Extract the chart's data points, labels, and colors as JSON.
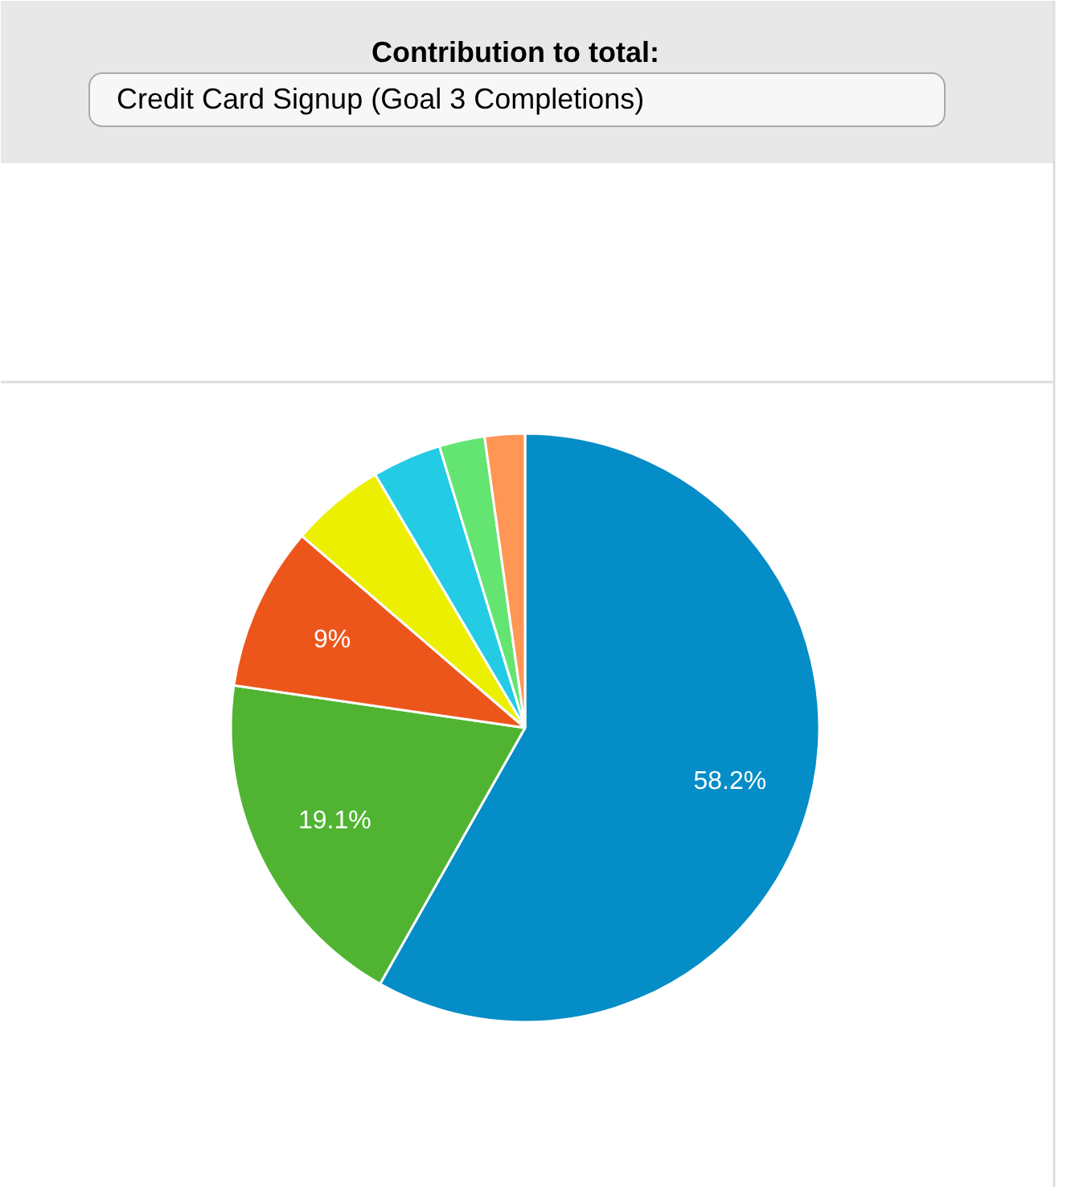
{
  "chart_data": {
    "type": "pie",
    "title": "Contribution to total:",
    "subtitle": "Credit Card Signup (Goal 3 Completions)",
    "categories": [
      null,
      null,
      null,
      null,
      null,
      null,
      null
    ],
    "values": [
      58.2,
      19.1,
      9,
      5.2,
      3.8,
      2.5,
      2.2
    ],
    "colors": [
      "#058dc7",
      "#50b432",
      "#ed561b",
      "#edef00",
      "#24cbe5",
      "#64e572",
      "#ff9655"
    ],
    "value_labels": [
      "58.2%",
      "19.1%",
      "9%",
      null,
      null,
      null,
      null
    ]
  }
}
